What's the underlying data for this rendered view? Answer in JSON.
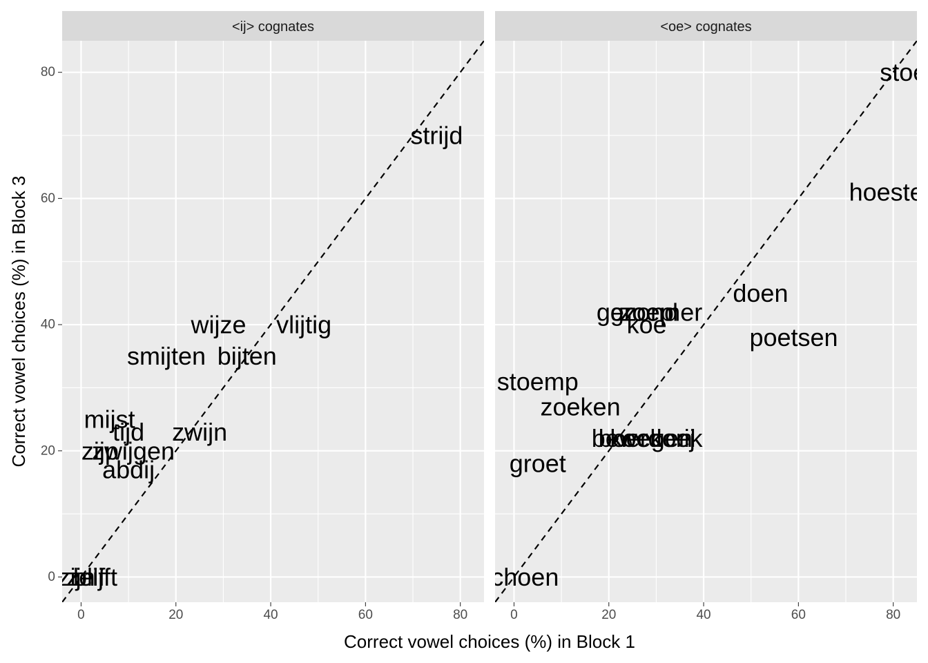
{
  "chart_data": {
    "type": "scatter",
    "mark": "text",
    "xlabel": "Correct vowel choices (%) in Block 1",
    "ylabel": "Correct vowel choices (%) in Block 3",
    "xlim": [
      -4,
      85
    ],
    "ylim": [
      -4,
      85
    ],
    "xticks": [
      0,
      20,
      40,
      60,
      80
    ],
    "yticks": [
      0,
      20,
      40,
      60,
      80
    ],
    "reference_line": "y = x (dashed)",
    "grid": true,
    "panels": [
      {
        "title": "<ij> cognates",
        "points": [
          {
            "label": "strijd",
            "x": 75,
            "y": 70
          },
          {
            "label": "wijze",
            "x": 29,
            "y": 40
          },
          {
            "label": "vlijtig",
            "x": 47,
            "y": 40
          },
          {
            "label": "smijten",
            "x": 18,
            "y": 35
          },
          {
            "label": "bijten",
            "x": 35,
            "y": 35
          },
          {
            "label": "mijst",
            "x": 6,
            "y": 25
          },
          {
            "label": "tijd",
            "x": 10,
            "y": 23
          },
          {
            "label": "zwijn",
            "x": 25,
            "y": 23
          },
          {
            "label": "zijp",
            "x": 4,
            "y": 20
          },
          {
            "label": "zwijgen",
            "x": 11,
            "y": 20
          },
          {
            "label": "abdij",
            "x": 10,
            "y": 17
          },
          {
            "label": "zijn",
            "x": -1,
            "y": 0
          },
          {
            "label": "blijft",
            "x": 3,
            "y": 0
          },
          {
            "label": "zelf",
            "x": 1,
            "y": 0
          }
        ]
      },
      {
        "title": "<oe> cognates",
        "points": [
          {
            "label": "stoer",
            "x": 83,
            "y": 80
          },
          {
            "label": "hoesten",
            "x": 80,
            "y": 61
          },
          {
            "label": "doen",
            "x": 52,
            "y": 45
          },
          {
            "label": "poetsen",
            "x": 59,
            "y": 38
          },
          {
            "label": "gezond",
            "x": 26,
            "y": 42
          },
          {
            "label": "groep",
            "x": 27,
            "y": 42
          },
          {
            "label": "zoemer",
            "x": 31,
            "y": 42
          },
          {
            "label": "koe",
            "x": 28,
            "y": 40
          },
          {
            "label": "stoemp",
            "x": 5,
            "y": 31
          },
          {
            "label": "zoeken",
            "x": 14,
            "y": 27
          },
          {
            "label": "boerderij",
            "x": 28,
            "y": 22
          },
          {
            "label": "bewegen",
            "x": 27,
            "y": 22
          },
          {
            "label": "koekoek",
            "x": 30,
            "y": 22
          },
          {
            "label": "groet",
            "x": 5,
            "y": 18
          },
          {
            "label": "schoen",
            "x": 1,
            "y": 0
          }
        ]
      }
    ]
  }
}
